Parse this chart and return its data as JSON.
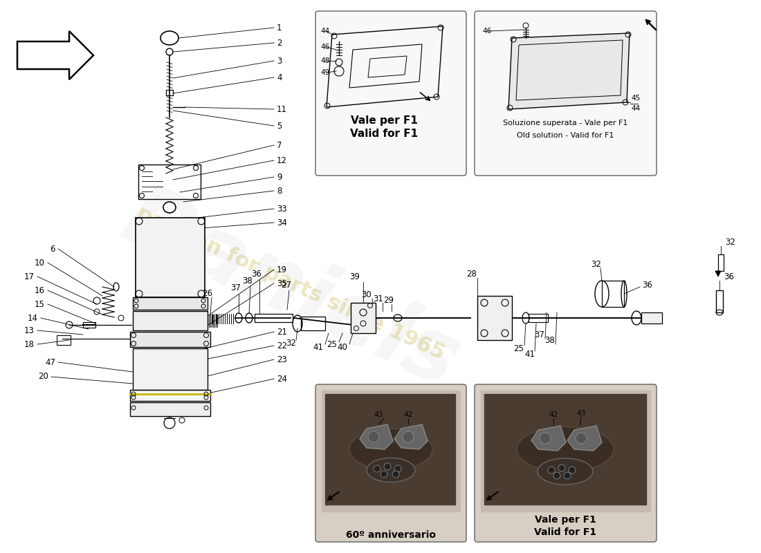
{
  "bg": "#ffffff",
  "wm_text": "passion for parts since 1965",
  "wm_color": "#c8b840",
  "wm_alpha": 0.32,
  "inset1_caption1": "Vale per F1",
  "inset1_caption2": "Valid for F1",
  "inset2_caption1": "Soluzione superata - Vale per F1",
  "inset2_caption2": "Old solution - Valid for F1",
  "inset3_caption": "60º anniversario",
  "inset4_caption1": "Vale per F1",
  "inset4_caption2": "Valid for F1"
}
